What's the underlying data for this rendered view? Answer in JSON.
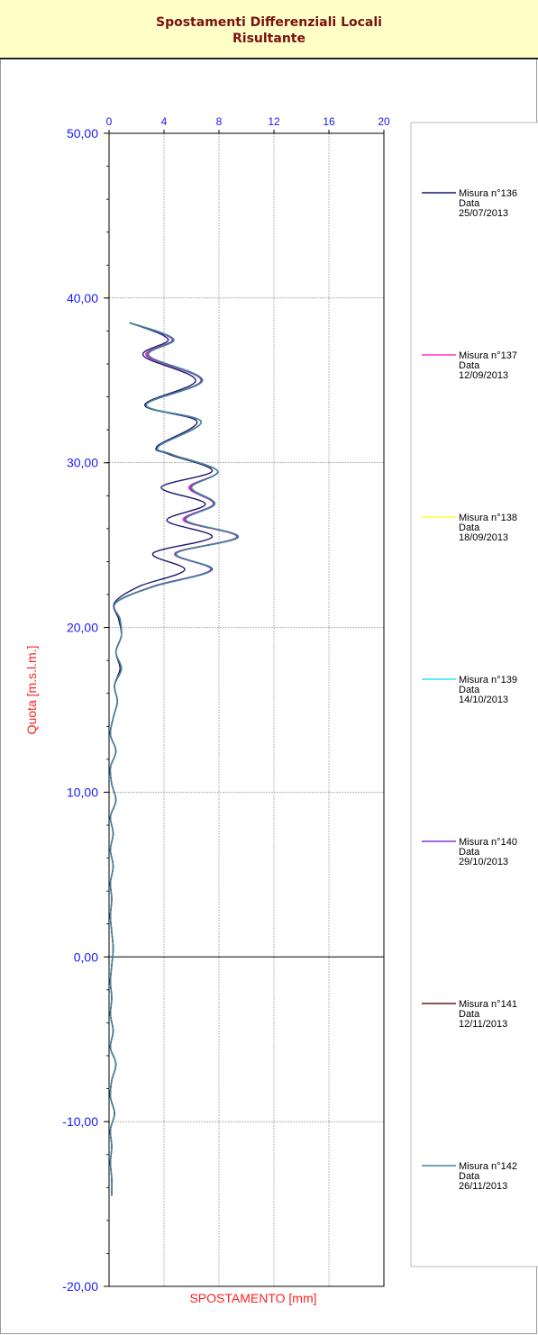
{
  "header": {
    "title_line1": "Spostamenti Differenziali Locali",
    "title_line2": "Risultante"
  },
  "chart_data": {
    "type": "line",
    "xlabel": "SPOSTAMENTO [mm]",
    "ylabel": "Quota [m.s.l.m.]",
    "xlim": [
      0,
      20
    ],
    "ylim": [
      -20,
      50
    ],
    "x_ticks": [
      "0",
      "4",
      "8",
      "12",
      "16",
      "20"
    ],
    "x_tick_values": [
      0,
      4,
      8,
      12,
      16,
      20
    ],
    "y_ticks": [
      "50,00",
      "40,00",
      "30,00",
      "20,00",
      "10,00",
      "0,00",
      "-10,00",
      "-20,00"
    ],
    "y_tick_values": [
      50,
      40,
      30,
      20,
      10,
      0,
      -10,
      -20
    ],
    "grid": true,
    "legend_position": "right",
    "depth": [
      38.5,
      37.5,
      36.5,
      35.0,
      33.5,
      32.5,
      31.0,
      30.5,
      29.5,
      28.5,
      27.5,
      26.5,
      25.5,
      24.5,
      23.5,
      22.5,
      21.5,
      20.5,
      19.5,
      18.5,
      17.5,
      16.5,
      15.5,
      14.5,
      13.5,
      12.5,
      11.5,
      10.5,
      9.5,
      8.5,
      7.5,
      6.5,
      5.5,
      4.5,
      3.5,
      2.5,
      1.5,
      0.5,
      -0.5,
      -1.5,
      -2.5,
      -3.5,
      -4.5,
      -5.5,
      -6.5,
      -7.5,
      -8.5,
      -9.5,
      -10.5,
      -11.5,
      -12.5,
      -13.5,
      -14.5
    ],
    "series": [
      {
        "name": "Misura n°136",
        "date": "25/07/2013",
        "color": "#1a1a6e",
        "values": [
          1.5,
          4.3,
          2.5,
          6.3,
          2.6,
          6.4,
          3.5,
          4.4,
          7.5,
          3.8,
          7.0,
          4.2,
          7.5,
          3.2,
          5.5,
          2.2,
          0.4,
          0.7,
          0.9,
          0.5,
          0.8,
          0.4,
          0.6,
          0.3,
          0.1,
          0.5,
          0.1,
          0.2,
          0.5,
          0.1,
          0.3,
          0.1,
          0.3,
          0.1,
          0.2,
          0.1,
          0.2,
          0.3,
          0.2,
          0.1,
          0.2,
          0.1,
          0.3,
          0.1,
          0.5,
          0.2,
          0.1,
          0.4,
          0.1,
          0.2,
          0.1,
          0.2,
          0.2
        ]
      },
      {
        "name": "Misura n°137",
        "date": "12/09/2013",
        "color": "#ff33cc",
        "values": [
          1.5,
          4.6,
          2.7,
          6.7,
          2.7,
          6.7,
          3.6,
          4.6,
          7.9,
          5.8,
          7.6,
          5.4,
          9.3,
          4.8,
          7.4,
          3.2,
          0.5,
          0.8,
          0.9,
          0.5,
          0.9,
          0.4,
          0.6,
          0.3,
          0.1,
          0.5,
          0.1,
          0.2,
          0.5,
          0.1,
          0.3,
          0.1,
          0.3,
          0.1,
          0.2,
          0.1,
          0.2,
          0.3,
          0.2,
          0.1,
          0.2,
          0.1,
          0.3,
          0.1,
          0.5,
          0.2,
          0.1,
          0.4,
          0.1,
          0.2,
          0.1,
          0.2,
          0.2
        ]
      },
      {
        "name": "Misura n°138",
        "date": "18/09/2013",
        "color": "#ffff33",
        "values": [
          1.5,
          4.7,
          2.9,
          6.8,
          2.7,
          6.7,
          3.6,
          4.6,
          7.9,
          6.0,
          7.7,
          5.6,
          9.4,
          4.9,
          7.5,
          3.3,
          0.5,
          0.8,
          0.9,
          0.5,
          0.9,
          0.4,
          0.6,
          0.3,
          0.1,
          0.5,
          0.1,
          0.2,
          0.5,
          0.1,
          0.3,
          0.1,
          0.3,
          0.1,
          0.2,
          0.1,
          0.2,
          0.3,
          0.2,
          0.1,
          0.2,
          0.1,
          0.3,
          0.1,
          0.5,
          0.2,
          0.1,
          0.4,
          0.1,
          0.2,
          0.1,
          0.2,
          0.2
        ]
      },
      {
        "name": "Misura n°139",
        "date": "14/10/2013",
        "color": "#33e0ff",
        "values": [
          1.5,
          4.7,
          2.9,
          6.8,
          2.7,
          6.7,
          3.6,
          4.6,
          7.9,
          6.0,
          7.7,
          5.6,
          9.4,
          4.9,
          7.5,
          3.3,
          0.5,
          0.8,
          0.9,
          0.5,
          0.9,
          0.4,
          0.6,
          0.3,
          0.1,
          0.5,
          0.1,
          0.2,
          0.5,
          0.1,
          0.3,
          0.1,
          0.3,
          0.1,
          0.2,
          0.1,
          0.2,
          0.3,
          0.2,
          0.1,
          0.2,
          0.1,
          0.3,
          0.1,
          0.5,
          0.2,
          0.1,
          0.4,
          0.1,
          0.2,
          0.1,
          0.2,
          0.2
        ]
      },
      {
        "name": "Misura n°140",
        "date": "29/10/2013",
        "color": "#8833cc",
        "values": [
          1.5,
          4.6,
          2.8,
          6.7,
          2.7,
          6.7,
          3.6,
          4.6,
          7.9,
          5.9,
          7.6,
          5.5,
          9.3,
          4.8,
          7.4,
          3.2,
          0.5,
          0.8,
          0.9,
          0.5,
          0.9,
          0.4,
          0.6,
          0.3,
          0.1,
          0.5,
          0.1,
          0.2,
          0.5,
          0.1,
          0.3,
          0.1,
          0.3,
          0.1,
          0.2,
          0.1,
          0.2,
          0.3,
          0.2,
          0.1,
          0.2,
          0.1,
          0.3,
          0.1,
          0.5,
          0.2,
          0.1,
          0.4,
          0.1,
          0.2,
          0.1,
          0.2,
          0.2
        ]
      },
      {
        "name": "Misura n°141",
        "date": "12/11/2013",
        "color": "#6b1a1a",
        "values": [
          1.5,
          4.7,
          2.9,
          6.8,
          2.7,
          6.7,
          3.6,
          4.6,
          7.9,
          6.0,
          7.7,
          5.6,
          9.4,
          4.9,
          7.5,
          3.3,
          0.5,
          0.8,
          0.9,
          0.5,
          0.9,
          0.4,
          0.6,
          0.3,
          0.1,
          0.5,
          0.1,
          0.2,
          0.5,
          0.1,
          0.3,
          0.1,
          0.3,
          0.1,
          0.2,
          0.1,
          0.2,
          0.3,
          0.2,
          0.1,
          0.2,
          0.1,
          0.3,
          0.1,
          0.5,
          0.2,
          0.1,
          0.4,
          0.1,
          0.2,
          0.1,
          0.2,
          0.2
        ]
      },
      {
        "name": "Misura n°142",
        "date": "26/11/2013",
        "color": "#3a8aa0",
        "values": [
          1.5,
          4.7,
          2.9,
          6.8,
          2.7,
          6.7,
          3.6,
          4.6,
          7.9,
          6.0,
          7.7,
          5.6,
          9.4,
          4.9,
          7.5,
          3.3,
          0.5,
          0.8,
          0.9,
          0.5,
          0.9,
          0.4,
          0.6,
          0.3,
          0.1,
          0.5,
          0.1,
          0.2,
          0.5,
          0.1,
          0.3,
          0.1,
          0.3,
          0.1,
          0.2,
          0.1,
          0.2,
          0.3,
          0.2,
          0.1,
          0.2,
          0.1,
          0.3,
          0.1,
          0.5,
          0.2,
          0.1,
          0.4,
          0.1,
          0.2,
          0.1,
          0.2,
          0.2
        ]
      }
    ]
  },
  "legend": {
    "data_prefix": "Data"
  }
}
